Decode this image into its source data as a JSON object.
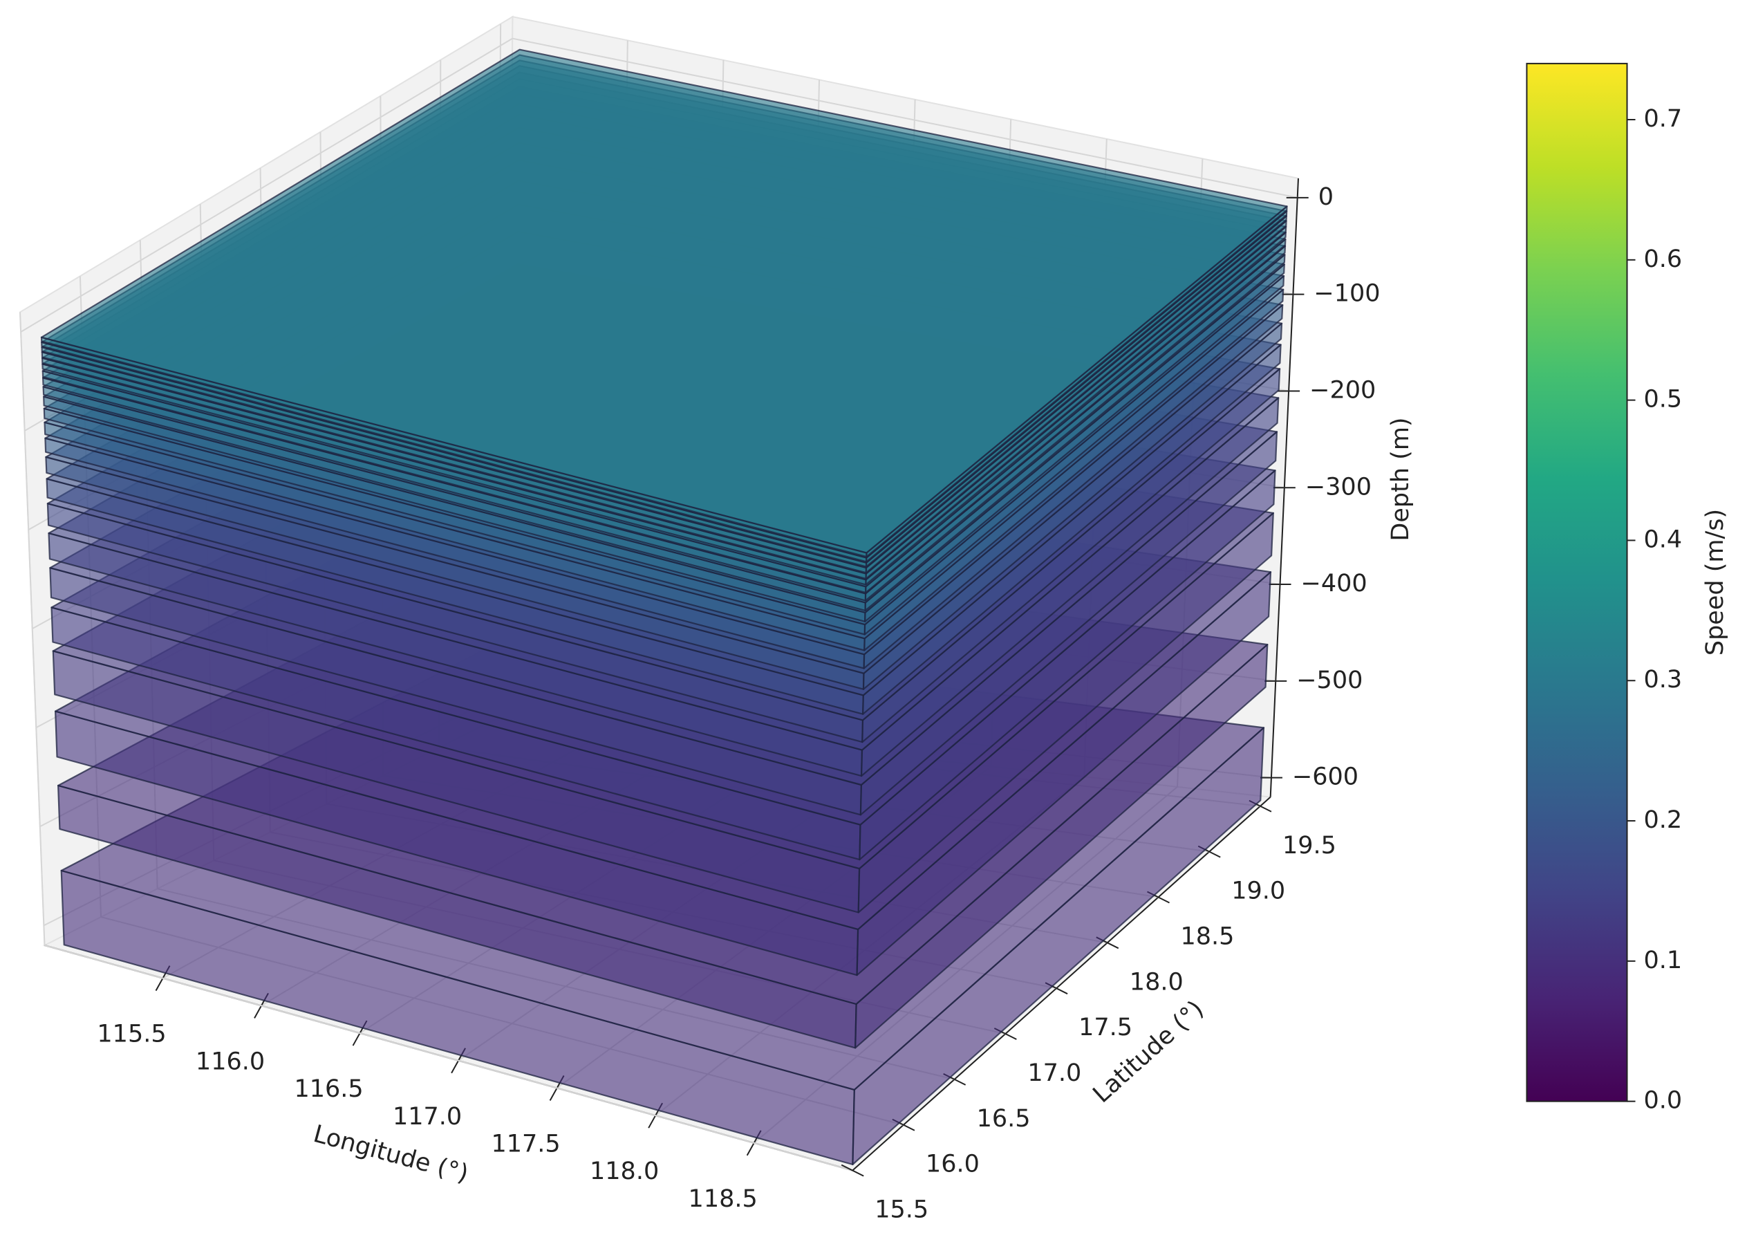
{
  "chart_data": {
    "type": "slab3d",
    "xlabel": "Longitude (°)",
    "ylabel": "Latitude (°)",
    "zlabel": "Depth (m)",
    "colorbar_label": "Speed (m/s)",
    "colormap": "viridis",
    "clim": [
      0,
      0.74
    ],
    "cticks": [
      {
        "value": 0,
        "label": "0.0"
      },
      0.1,
      0.2,
      0.3,
      0.4,
      0.5,
      0.6,
      0.7
    ],
    "xlim": [
      114.9,
      119.0
    ],
    "ylim": [
      15.5,
      19.6
    ],
    "zlim": [
      -620,
      20
    ],
    "xticks": [
      115.5,
      {
        "value": 116,
        "label": "116.0"
      },
      116.5,
      {
        "value": 117,
        "label": "117.0"
      },
      117.5,
      {
        "value": 118,
        "label": "118.0"
      },
      118.5
    ],
    "yticks": [
      15.5,
      {
        "value": 16,
        "label": "16.0"
      },
      16.5,
      {
        "value": 17,
        "label": "17.0"
      },
      17.5,
      {
        "value": 18,
        "label": "18.0"
      },
      18.5,
      {
        "value": 19,
        "label": "19.0"
      },
      19.5
    ],
    "zticks": [
      0,
      {
        "value": -100,
        "label": "−100"
      },
      {
        "value": -200,
        "label": "−200"
      },
      {
        "value": -300,
        "label": "−300"
      },
      {
        "value": -400,
        "label": "−400"
      },
      {
        "value": -500,
        "label": "−500"
      },
      {
        "value": -600,
        "label": "−600"
      }
    ],
    "lon_extent": [
      115.0,
      119.0
    ],
    "lat_extent": [
      15.5,
      19.5
    ],
    "layers": [
      {
        "depth": 0,
        "thickness": 4,
        "speed": 0.3
      },
      {
        "depth": -5,
        "thickness": 4,
        "speed": 0.3
      },
      {
        "depth": -10,
        "thickness": 4,
        "speed": 0.3
      },
      {
        "depth": -15,
        "thickness": 5,
        "speed": 0.29
      },
      {
        "depth": -21,
        "thickness": 5,
        "speed": 0.29
      },
      {
        "depth": -27,
        "thickness": 5,
        "speed": 0.29
      },
      {
        "depth": -34,
        "thickness": 6,
        "speed": 0.28
      },
      {
        "depth": -41,
        "thickness": 7,
        "speed": 0.28
      },
      {
        "depth": -50,
        "thickness": 8,
        "speed": 0.27
      },
      {
        "depth": -60,
        "thickness": 9,
        "speed": 0.26
      },
      {
        "depth": -72,
        "thickness": 10,
        "speed": 0.25
      },
      {
        "depth": -86,
        "thickness": 12,
        "speed": 0.24
      },
      {
        "depth": -102,
        "thickness": 14,
        "speed": 0.22
      },
      {
        "depth": -121,
        "thickness": 16,
        "speed": 0.2
      },
      {
        "depth": -143,
        "thickness": 19,
        "speed": 0.18
      },
      {
        "depth": -168,
        "thickness": 22,
        "speed": 0.16
      },
      {
        "depth": -198,
        "thickness": 26,
        "speed": 0.15
      },
      {
        "depth": -233,
        "thickness": 30,
        "speed": 0.14
      },
      {
        "depth": -273,
        "thickness": 35,
        "speed": 0.13
      },
      {
        "depth": -317,
        "thickness": 44,
        "speed": 0.12
      },
      {
        "depth": -378,
        "thickness": 46,
        "speed": 0.11
      },
      {
        "depth": -453,
        "thickness": 44,
        "speed": 0.1
      },
      {
        "depth": -539,
        "thickness": 75,
        "speed": 0.1
      }
    ]
  }
}
